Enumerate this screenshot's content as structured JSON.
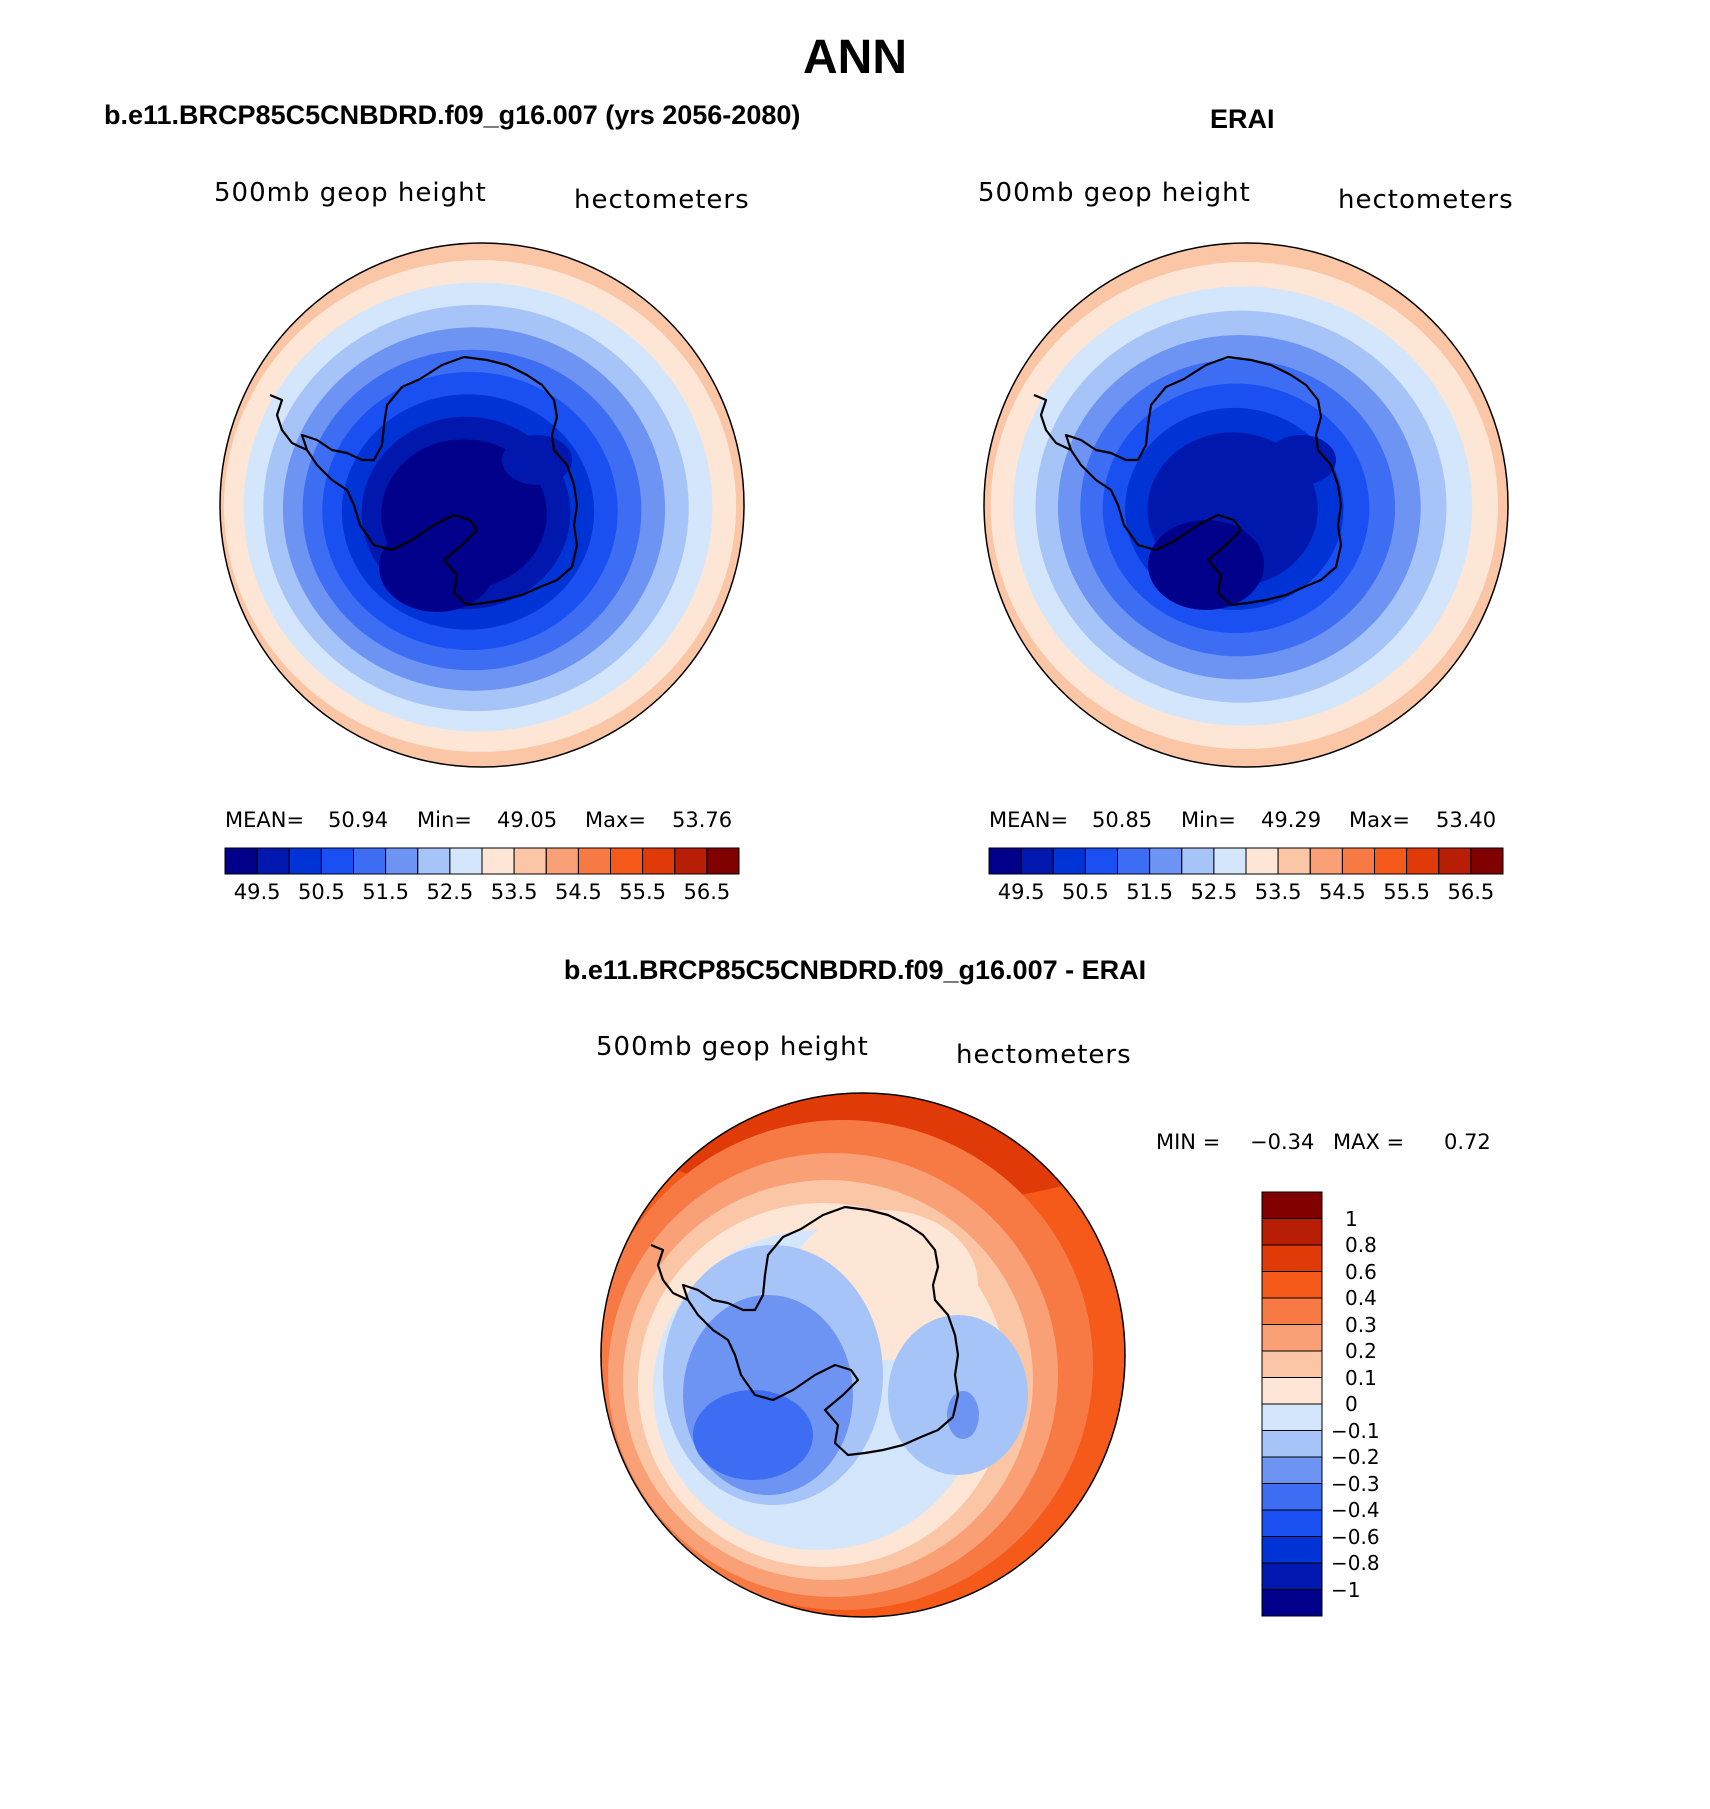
{
  "title": "ANN",
  "panels": [
    {
      "id": "case",
      "header": "b.e11.BRCP85C5CNBDRD.f09_g16.007 (yrs 2056-2080)",
      "field_label": "500mb geop height",
      "units_label": "hectometers",
      "stats": {
        "mean_label": "MEAN=",
        "mean": "50.94",
        "min_label": "Min=",
        "min": "49.05",
        "max_label": "Max=",
        "max": "53.76"
      },
      "colorbar_ticks": [
        "49.5",
        "50.5",
        "51.5",
        "52.5",
        "53.5",
        "54.5",
        "55.5",
        "56.5"
      ],
      "ring_levels": [
        "53.5",
        "53.0",
        "52.5",
        "52.0",
        "51.5",
        "51.0",
        "50.5",
        "50.0",
        "49.5",
        "49.0"
      ]
    },
    {
      "id": "obs",
      "header": "ERAI",
      "field_label": "500mb geop height",
      "units_label": "hectometers",
      "stats": {
        "mean_label": "MEAN=",
        "mean": "50.85",
        "min_label": "Min=",
        "min": "49.29",
        "max_label": "Max=",
        "max": "53.40"
      },
      "colorbar_ticks": [
        "49.5",
        "50.5",
        "51.5",
        "52.5",
        "53.5",
        "54.5",
        "55.5",
        "56.5"
      ],
      "ring_levels": [
        "53.5",
        "53.0",
        "52.5",
        "52.0",
        "51.5",
        "51.0",
        "50.5",
        "50.0",
        "49.5"
      ]
    }
  ],
  "difference": {
    "header": "b.e11.BRCP85C5CNBDRD.f09_g16.007 - ERAI",
    "field_label": "500mb geop height",
    "units_label": "hectometers",
    "minmax": {
      "min_label": "MIN =",
      "min": "−0.34",
      "max_label": "MAX =",
      "max": "0.72"
    },
    "colorbar_ticks": [
      "1",
      "0.8",
      "0.6",
      "0.4",
      "0.3",
      "0.2",
      "0.1",
      "0",
      "−0.1",
      "−0.2",
      "−0.3",
      "−0.4",
      "−0.6",
      "−0.8",
      "−1"
    ]
  },
  "colors": {
    "abs_palette": [
      "#00008a",
      "#0018ad",
      "#0033d6",
      "#1a4ff2",
      "#3d6df2",
      "#6d94f2",
      "#a6c4f7",
      "#d4e6fb",
      "#fde6d6",
      "#fbc6a6",
      "#f9a077",
      "#f77a45",
      "#f55a1a",
      "#e03a08",
      "#b81e05",
      "#800000"
    ],
    "diff_palette": [
      "#00008a",
      "#0018ad",
      "#0033d6",
      "#1a4ff2",
      "#3d6df2",
      "#6d94f2",
      "#a6c4f7",
      "#d4e6fb",
      "#fde6d6",
      "#fbc6a6",
      "#f9a077",
      "#f77a45",
      "#f55a1a",
      "#e03a08",
      "#b81e05",
      "#800000"
    ]
  }
}
